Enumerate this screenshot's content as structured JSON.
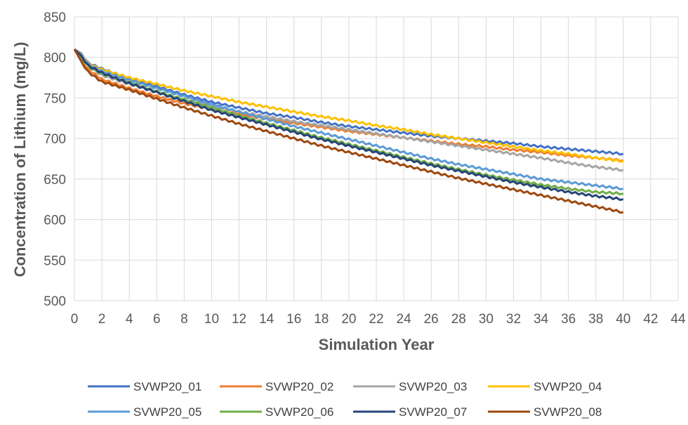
{
  "chart_data": {
    "type": "line",
    "title": "",
    "xlabel": "Simulation Year",
    "ylabel": "Concentration of Lithium (mg/L)",
    "xlim": [
      0,
      44
    ],
    "ylim": [
      500,
      850
    ],
    "x_ticks": [
      0,
      2,
      4,
      6,
      8,
      10,
      12,
      14,
      16,
      18,
      20,
      22,
      24,
      26,
      28,
      30,
      32,
      34,
      36,
      38,
      40,
      42,
      44
    ],
    "y_ticks": [
      500,
      550,
      600,
      650,
      700,
      750,
      800,
      850
    ],
    "grid": "vertical and horizontal major gridlines",
    "legend_position": "bottom",
    "x": [
      0,
      0.5,
      1,
      2,
      4,
      6,
      8,
      10,
      12,
      14,
      16,
      18,
      20,
      22,
      24,
      26,
      28,
      30,
      32,
      34,
      36,
      38,
      40
    ],
    "series": [
      {
        "name": "SVWP20_01",
        "color": "#4472C4",
        "values": [
          810,
          805,
          793,
          786,
          774,
          764,
          754,
          745,
          738,
          731,
          726,
          720,
          715,
          711,
          707,
          703,
          700,
          697,
          694,
          690,
          687,
          684,
          681
        ]
      },
      {
        "name": "SVWP20_02",
        "color": "#ED7D31",
        "values": [
          810,
          797,
          785,
          773,
          762,
          752,
          743,
          736,
          730,
          724,
          719,
          714,
          709,
          705,
          701,
          697,
          693,
          690,
          686,
          683,
          679,
          676,
          673
        ]
      },
      {
        "name": "SVWP20_03",
        "color": "#A5A5A5",
        "values": [
          810,
          800,
          789,
          778,
          767,
          757,
          748,
          740,
          733,
          727,
          721,
          716,
          711,
          706,
          701,
          696,
          691,
          686,
          681,
          676,
          670,
          665,
          661
        ]
      },
      {
        "name": "SVWP20_04",
        "color": "#FFC000",
        "values": [
          810,
          804,
          792,
          785,
          775,
          767,
          759,
          752,
          745,
          739,
          733,
          727,
          722,
          716,
          711,
          705,
          700,
          695,
          690,
          685,
          681,
          676,
          672
        ]
      },
      {
        "name": "SVWP20_05",
        "color": "#5B9BD5",
        "values": [
          810,
          803,
          791,
          783,
          772,
          762,
          752,
          742,
          733,
          724,
          715,
          707,
          699,
          691,
          683,
          675,
          668,
          662,
          656,
          650,
          646,
          642,
          638
        ]
      },
      {
        "name": "SVWP20_06",
        "color": "#70AD47",
        "values": [
          810,
          801,
          789,
          780,
          769,
          758,
          748,
          738,
          728,
          719,
          710,
          701,
          693,
          685,
          677,
          669,
          662,
          655,
          649,
          643,
          638,
          634,
          632
        ]
      },
      {
        "name": "SVWP20_07",
        "color": "#264478",
        "values": [
          810,
          802,
          790,
          781,
          768,
          757,
          746,
          735,
          726,
          717,
          708,
          699,
          691,
          683,
          675,
          667,
          660,
          653,
          646,
          640,
          634,
          629,
          625
        ]
      },
      {
        "name": "SVWP20_08",
        "color": "#9E480E",
        "values": [
          810,
          795,
          782,
          770,
          760,
          749,
          738,
          728,
          718,
          709,
          700,
          691,
          683,
          675,
          667,
          659,
          651,
          644,
          637,
          630,
          623,
          616,
          609
        ]
      }
    ]
  }
}
